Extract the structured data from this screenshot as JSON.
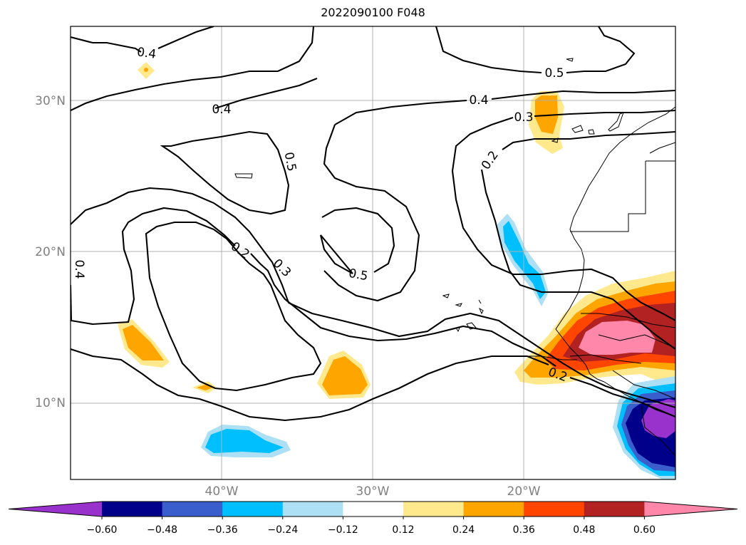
{
  "title": "2022090100 F048",
  "axes": {
    "lat_labels": [
      "30°N",
      "20°N",
      "10°N"
    ],
    "lon_labels": [
      "40°W",
      "30°W",
      "20°W"
    ],
    "lon_range": [
      "50°W",
      "10°W"
    ],
    "lat_range": [
      "5°N",
      "35°N"
    ],
    "grid": true
  },
  "contour_labels": [
    "0.4",
    "0.4",
    "0.4",
    "0.5",
    "0.5",
    "0.5",
    "0.4",
    "0.3",
    "0.2",
    "0.2",
    "0.3",
    "0.2"
  ],
  "colorbar": {
    "ticks": [
      "−0.60",
      "−0.48",
      "−0.36",
      "−0.24",
      "−0.12",
      "0.12",
      "0.24",
      "0.36",
      "0.48",
      "0.60"
    ],
    "colors": [
      "#9932CC",
      "#00008B",
      "#3A5FCD",
      "#00BFFF",
      "#ADDFF5",
      "#FFFFFF",
      "#FFE98C",
      "#FFA500",
      "#FF4500",
      "#B22222",
      "#FF87AA"
    ],
    "extend": "both"
  }
}
